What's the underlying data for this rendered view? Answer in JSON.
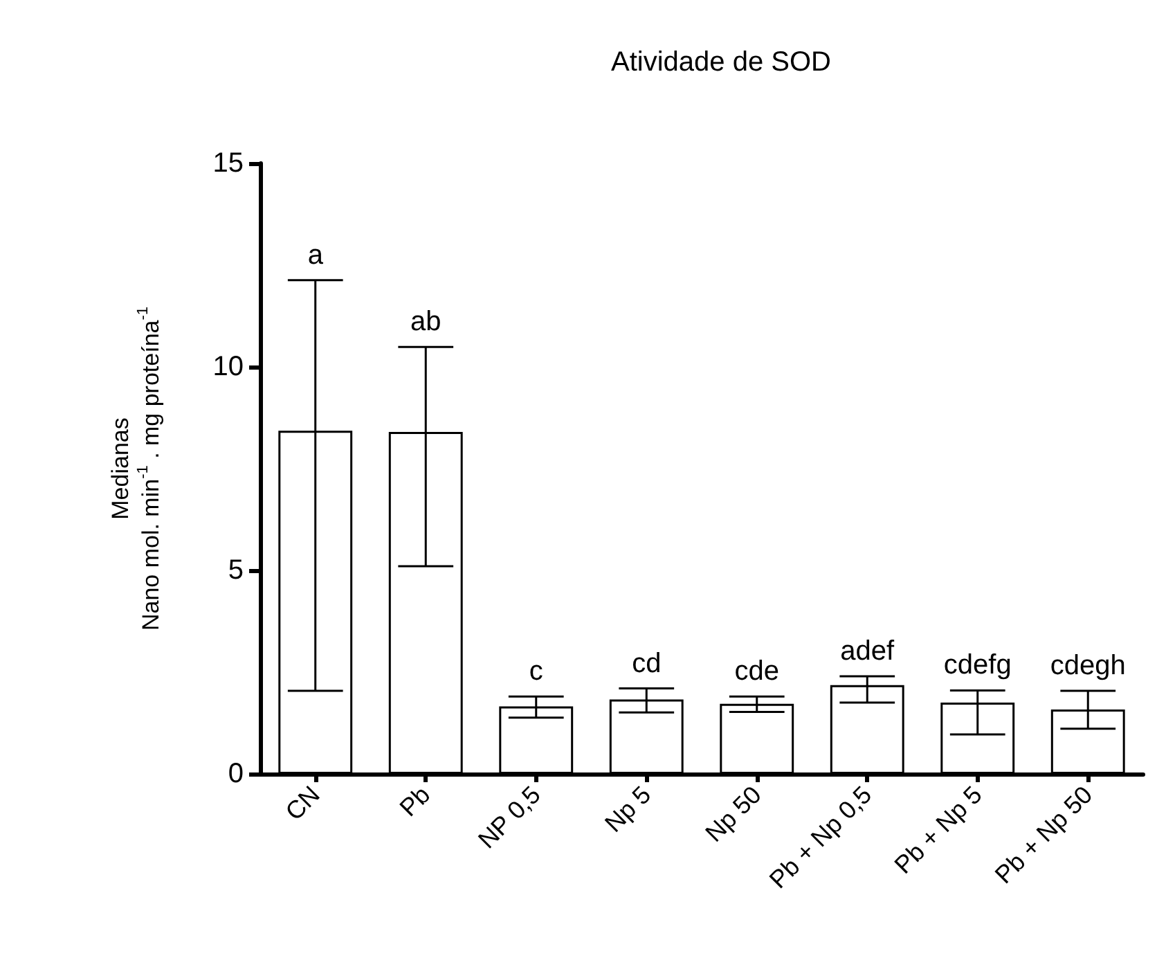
{
  "chart_data": {
    "type": "bar",
    "title": "Atividade de SOD",
    "ylabel": "Medianas\nNano mol. min$^{-1}$ . mg proteína$^{-1}$",
    "categories": [
      "CN",
      "Pb",
      "NP 0,5",
      "Np 5",
      "Np 50",
      "Pb + Np 0,5",
      "Pb + Np 5",
      "Pb + Np 50"
    ],
    "values": [
      8.43,
      8.4,
      1.66,
      1.83,
      1.72,
      2.18,
      1.75,
      1.58
    ],
    "errors": [
      [
        2.04,
        12.13
      ],
      [
        5.1,
        10.49
      ],
      [
        1.38,
        1.9
      ],
      [
        1.51,
        2.1
      ],
      [
        1.52,
        1.9
      ],
      [
        1.75,
        2.4
      ],
      [
        0.97,
        2.05
      ],
      [
        1.11,
        2.04
      ]
    ],
    "color": "#ffffff",
    "ylim": [
      0,
      15
    ],
    "yticks": [
      0,
      5,
      10,
      15
    ],
    "grid": false,
    "annotations": [
      {
        "text": "a",
        "x": "CN",
        "y": 12.13
      },
      {
        "text": "ab",
        "x": "Pb",
        "y": 10.49
      },
      {
        "text": "c",
        "x": "NP 0,5",
        "y": 1.9
      },
      {
        "text": "cd",
        "x": "Np 5",
        "y": 2.1
      },
      {
        "text": "cde",
        "x": "Np 50",
        "y": 1.9
      },
      {
        "text": "adef",
        "x": "Pb + Np 0,5",
        "y": 2.4
      },
      {
        "text": "cdefg",
        "x": "Pb + Np 5",
        "y": 2.05
      },
      {
        "text": "cdegh",
        "x": "Pb + Np 50",
        "y": 2.04
      }
    ]
  }
}
